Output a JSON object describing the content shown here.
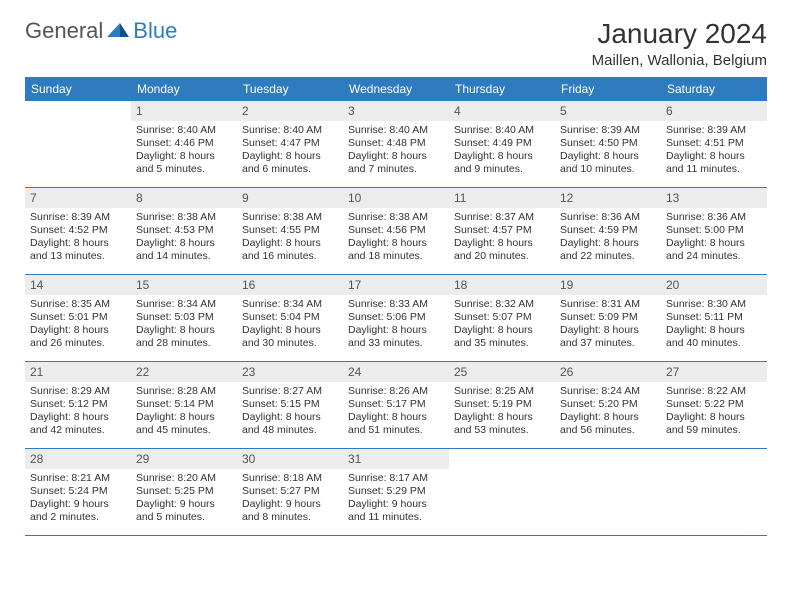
{
  "logo": {
    "general": "General",
    "blue": "Blue"
  },
  "title": "January 2024",
  "location": "Maillen, Wallonia, Belgium",
  "colors": {
    "header_bg": "#2f7bbf",
    "header_text": "#ffffff",
    "daynum_bg": "#ececec",
    "border": "#2f7bbf",
    "logo_gray": "#555555",
    "logo_blue": "#2f7bbf"
  },
  "weekdays": [
    "Sunday",
    "Monday",
    "Tuesday",
    "Wednesday",
    "Thursday",
    "Friday",
    "Saturday"
  ],
  "weeks": [
    [
      {
        "n": "",
        "sunrise": "",
        "sunset": "",
        "daylight": ""
      },
      {
        "n": "1",
        "sunrise": "Sunrise: 8:40 AM",
        "sunset": "Sunset: 4:46 PM",
        "daylight": "Daylight: 8 hours and 5 minutes."
      },
      {
        "n": "2",
        "sunrise": "Sunrise: 8:40 AM",
        "sunset": "Sunset: 4:47 PM",
        "daylight": "Daylight: 8 hours and 6 minutes."
      },
      {
        "n": "3",
        "sunrise": "Sunrise: 8:40 AM",
        "sunset": "Sunset: 4:48 PM",
        "daylight": "Daylight: 8 hours and 7 minutes."
      },
      {
        "n": "4",
        "sunrise": "Sunrise: 8:40 AM",
        "sunset": "Sunset: 4:49 PM",
        "daylight": "Daylight: 8 hours and 9 minutes."
      },
      {
        "n": "5",
        "sunrise": "Sunrise: 8:39 AM",
        "sunset": "Sunset: 4:50 PM",
        "daylight": "Daylight: 8 hours and 10 minutes."
      },
      {
        "n": "6",
        "sunrise": "Sunrise: 8:39 AM",
        "sunset": "Sunset: 4:51 PM",
        "daylight": "Daylight: 8 hours and 11 minutes."
      }
    ],
    [
      {
        "n": "7",
        "sunrise": "Sunrise: 8:39 AM",
        "sunset": "Sunset: 4:52 PM",
        "daylight": "Daylight: 8 hours and 13 minutes."
      },
      {
        "n": "8",
        "sunrise": "Sunrise: 8:38 AM",
        "sunset": "Sunset: 4:53 PM",
        "daylight": "Daylight: 8 hours and 14 minutes."
      },
      {
        "n": "9",
        "sunrise": "Sunrise: 8:38 AM",
        "sunset": "Sunset: 4:55 PM",
        "daylight": "Daylight: 8 hours and 16 minutes."
      },
      {
        "n": "10",
        "sunrise": "Sunrise: 8:38 AM",
        "sunset": "Sunset: 4:56 PM",
        "daylight": "Daylight: 8 hours and 18 minutes."
      },
      {
        "n": "11",
        "sunrise": "Sunrise: 8:37 AM",
        "sunset": "Sunset: 4:57 PM",
        "daylight": "Daylight: 8 hours and 20 minutes."
      },
      {
        "n": "12",
        "sunrise": "Sunrise: 8:36 AM",
        "sunset": "Sunset: 4:59 PM",
        "daylight": "Daylight: 8 hours and 22 minutes."
      },
      {
        "n": "13",
        "sunrise": "Sunrise: 8:36 AM",
        "sunset": "Sunset: 5:00 PM",
        "daylight": "Daylight: 8 hours and 24 minutes."
      }
    ],
    [
      {
        "n": "14",
        "sunrise": "Sunrise: 8:35 AM",
        "sunset": "Sunset: 5:01 PM",
        "daylight": "Daylight: 8 hours and 26 minutes."
      },
      {
        "n": "15",
        "sunrise": "Sunrise: 8:34 AM",
        "sunset": "Sunset: 5:03 PM",
        "daylight": "Daylight: 8 hours and 28 minutes."
      },
      {
        "n": "16",
        "sunrise": "Sunrise: 8:34 AM",
        "sunset": "Sunset: 5:04 PM",
        "daylight": "Daylight: 8 hours and 30 minutes."
      },
      {
        "n": "17",
        "sunrise": "Sunrise: 8:33 AM",
        "sunset": "Sunset: 5:06 PM",
        "daylight": "Daylight: 8 hours and 33 minutes."
      },
      {
        "n": "18",
        "sunrise": "Sunrise: 8:32 AM",
        "sunset": "Sunset: 5:07 PM",
        "daylight": "Daylight: 8 hours and 35 minutes."
      },
      {
        "n": "19",
        "sunrise": "Sunrise: 8:31 AM",
        "sunset": "Sunset: 5:09 PM",
        "daylight": "Daylight: 8 hours and 37 minutes."
      },
      {
        "n": "20",
        "sunrise": "Sunrise: 8:30 AM",
        "sunset": "Sunset: 5:11 PM",
        "daylight": "Daylight: 8 hours and 40 minutes."
      }
    ],
    [
      {
        "n": "21",
        "sunrise": "Sunrise: 8:29 AM",
        "sunset": "Sunset: 5:12 PM",
        "daylight": "Daylight: 8 hours and 42 minutes."
      },
      {
        "n": "22",
        "sunrise": "Sunrise: 8:28 AM",
        "sunset": "Sunset: 5:14 PM",
        "daylight": "Daylight: 8 hours and 45 minutes."
      },
      {
        "n": "23",
        "sunrise": "Sunrise: 8:27 AM",
        "sunset": "Sunset: 5:15 PM",
        "daylight": "Daylight: 8 hours and 48 minutes."
      },
      {
        "n": "24",
        "sunrise": "Sunrise: 8:26 AM",
        "sunset": "Sunset: 5:17 PM",
        "daylight": "Daylight: 8 hours and 51 minutes."
      },
      {
        "n": "25",
        "sunrise": "Sunrise: 8:25 AM",
        "sunset": "Sunset: 5:19 PM",
        "daylight": "Daylight: 8 hours and 53 minutes."
      },
      {
        "n": "26",
        "sunrise": "Sunrise: 8:24 AM",
        "sunset": "Sunset: 5:20 PM",
        "daylight": "Daylight: 8 hours and 56 minutes."
      },
      {
        "n": "27",
        "sunrise": "Sunrise: 8:22 AM",
        "sunset": "Sunset: 5:22 PM",
        "daylight": "Daylight: 8 hours and 59 minutes."
      }
    ],
    [
      {
        "n": "28",
        "sunrise": "Sunrise: 8:21 AM",
        "sunset": "Sunset: 5:24 PM",
        "daylight": "Daylight: 9 hours and 2 minutes."
      },
      {
        "n": "29",
        "sunrise": "Sunrise: 8:20 AM",
        "sunset": "Sunset: 5:25 PM",
        "daylight": "Daylight: 9 hours and 5 minutes."
      },
      {
        "n": "30",
        "sunrise": "Sunrise: 8:18 AM",
        "sunset": "Sunset: 5:27 PM",
        "daylight": "Daylight: 9 hours and 8 minutes."
      },
      {
        "n": "31",
        "sunrise": "Sunrise: 8:17 AM",
        "sunset": "Sunset: 5:29 PM",
        "daylight": "Daylight: 9 hours and 11 minutes."
      },
      {
        "n": "",
        "sunrise": "",
        "sunset": "",
        "daylight": ""
      },
      {
        "n": "",
        "sunrise": "",
        "sunset": "",
        "daylight": ""
      },
      {
        "n": "",
        "sunrise": "",
        "sunset": "",
        "daylight": ""
      }
    ]
  ]
}
